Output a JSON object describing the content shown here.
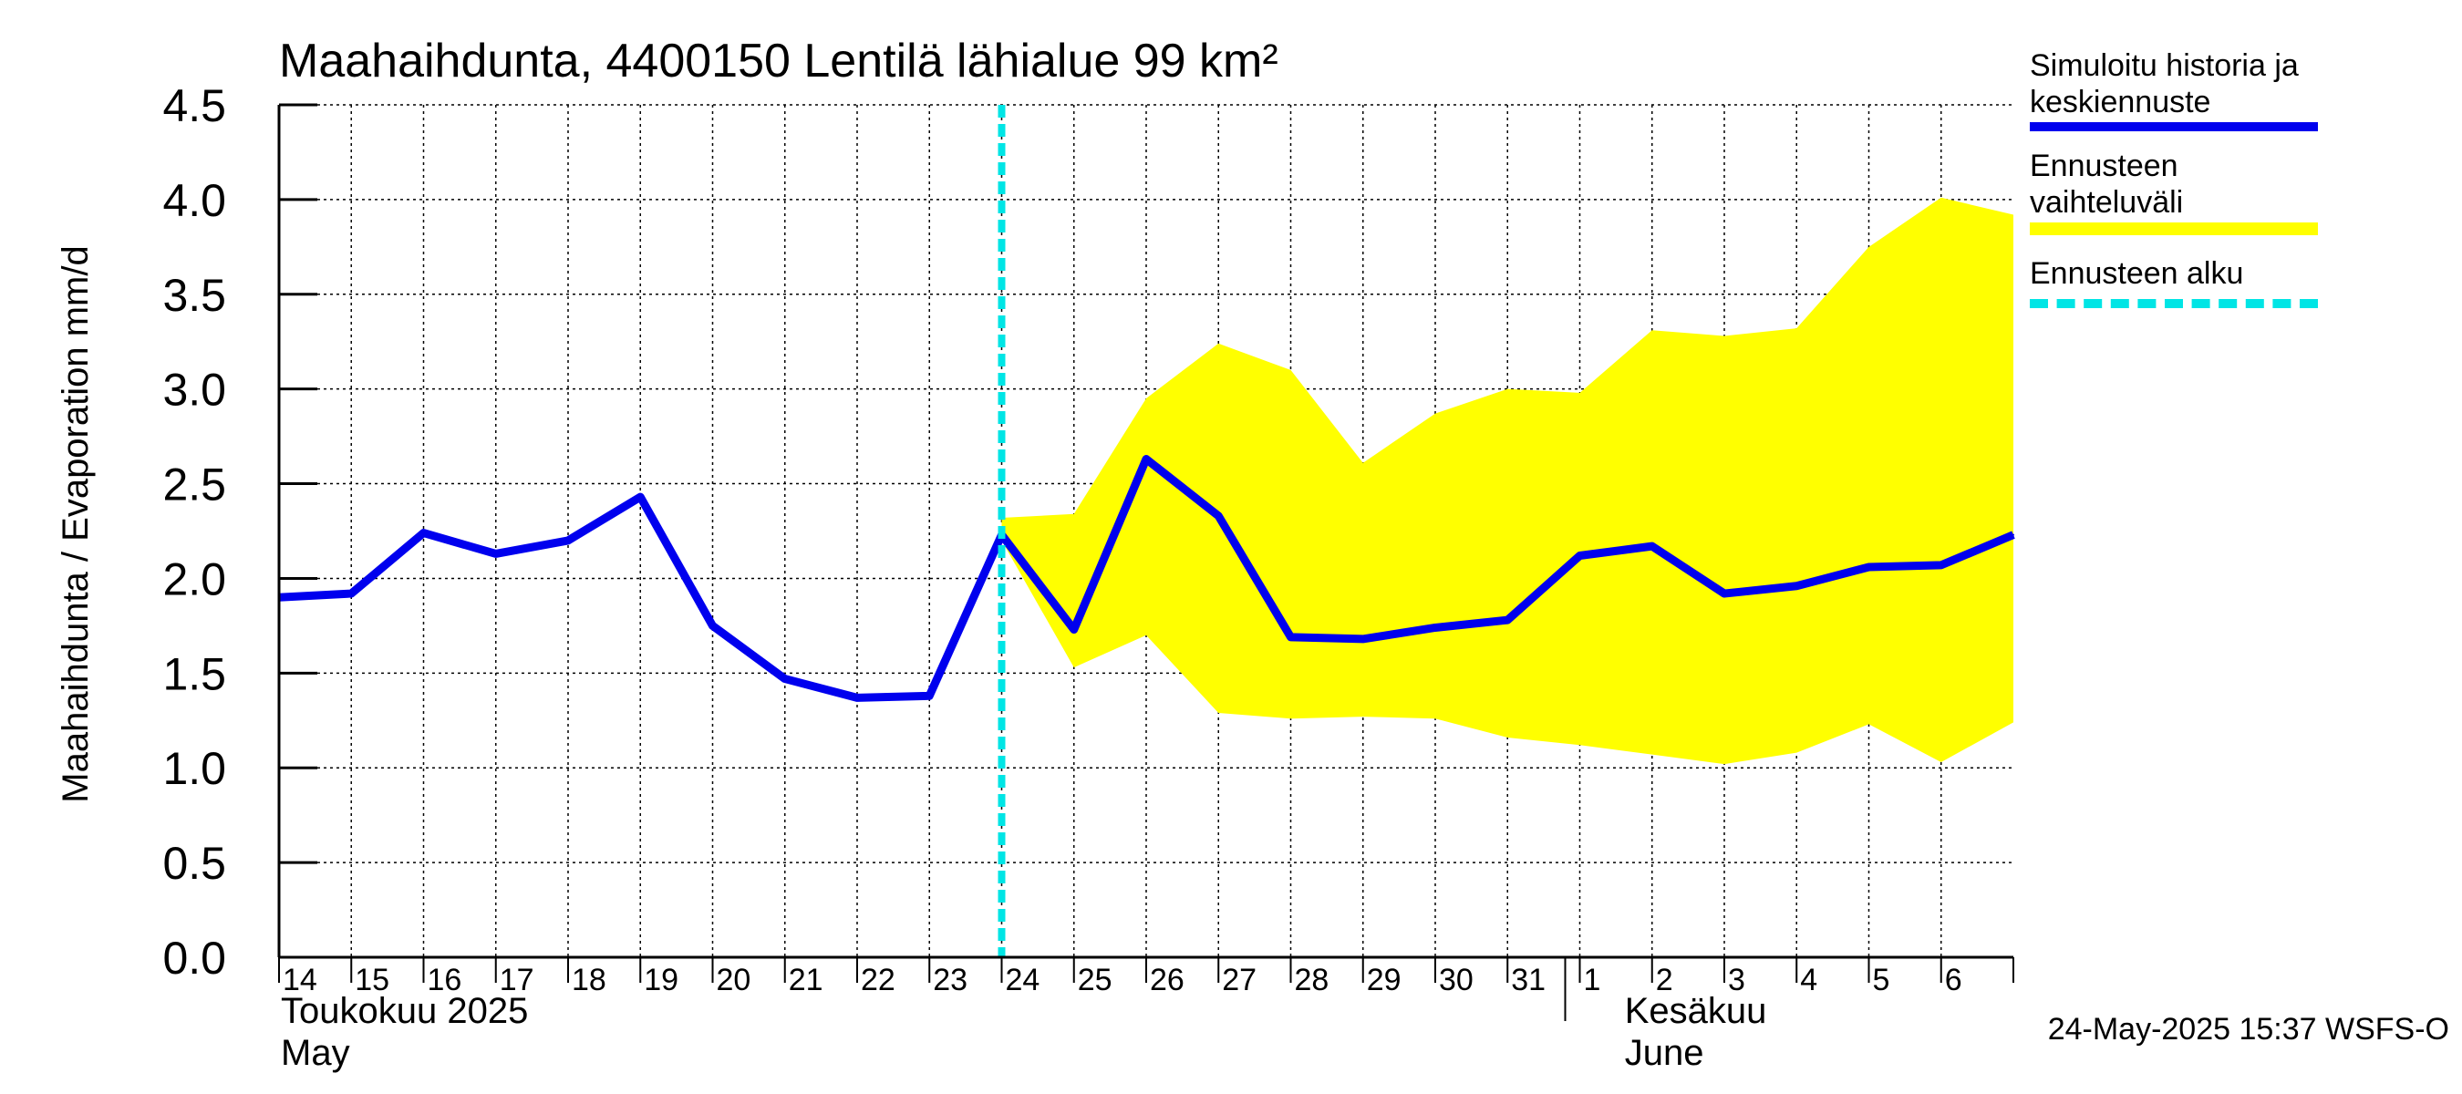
{
  "chart_data": {
    "type": "area",
    "title": "Maahaihdunta, 4400150 Lentilä lähialue 99 km²",
    "ylabel": "Maahaihdunta / Evaporation   mm/d",
    "ylim": [
      0,
      4.5
    ],
    "yticks": [
      "0.0",
      "0.5",
      "1.0",
      "1.5",
      "2.0",
      "2.5",
      "3.0",
      "3.5",
      "4.0",
      "4.5"
    ],
    "xlim": [
      0,
      24
    ],
    "x_tick_labels": [
      "14",
      "15",
      "16",
      "17",
      "18",
      "19",
      "20",
      "21",
      "22",
      "23",
      "24",
      "25",
      "26",
      "27",
      "28",
      "29",
      "30",
      "31",
      "1",
      "2",
      "3",
      "4",
      "5",
      "6"
    ],
    "month_labels": [
      {
        "line1": "Toukokuu  2025",
        "line2": "May"
      },
      {
        "line1": "Kesäkuu",
        "line2": "June"
      }
    ],
    "grid": true,
    "forecast_start_x": 10,
    "series": [
      {
        "name": "Simuloitu historia ja keskiennuste",
        "color": "#0000ee",
        "x": [
          0,
          1,
          2,
          3,
          4,
          5,
          6,
          7,
          8,
          9,
          10,
          11,
          12,
          13,
          14,
          15,
          16,
          17,
          18,
          19,
          20,
          21,
          22,
          23,
          24
        ],
        "y": [
          1.9,
          1.92,
          2.24,
          2.13,
          2.2,
          2.43,
          1.75,
          1.47,
          1.37,
          1.38,
          2.23,
          1.73,
          2.63,
          2.33,
          1.69,
          1.68,
          1.74,
          1.78,
          2.12,
          2.17,
          1.92,
          1.96,
          2.06,
          2.07,
          2.23
        ]
      },
      {
        "name": "Ennusteen vaihteluväli",
        "color": "#ffff00",
        "x": [
          10,
          11,
          12,
          13,
          14,
          15,
          16,
          17,
          18,
          19,
          20,
          21,
          22,
          23,
          24
        ],
        "lower": [
          2.2,
          1.53,
          1.7,
          1.29,
          1.26,
          1.27,
          1.26,
          1.16,
          1.12,
          1.07,
          1.02,
          1.08,
          1.23,
          1.03,
          1.24
        ],
        "upper": [
          2.32,
          2.34,
          2.95,
          3.24,
          3.1,
          2.61,
          2.87,
          3.0,
          2.98,
          3.31,
          3.28,
          3.32,
          3.75,
          4.01,
          3.92
        ]
      }
    ]
  },
  "legend": {
    "items": [
      {
        "label": "Simuloitu historia ja\nkeskiennuste",
        "color": "#0000ee",
        "style": "solid"
      },
      {
        "label": "Ennusteen vaihteluväli",
        "color": "#ffff00",
        "style": "solid"
      },
      {
        "label": "Ennusteen alku",
        "color": "#00e5e5",
        "style": "dashed"
      }
    ]
  },
  "footer": "24-May-2025 15:37 WSFS-O"
}
